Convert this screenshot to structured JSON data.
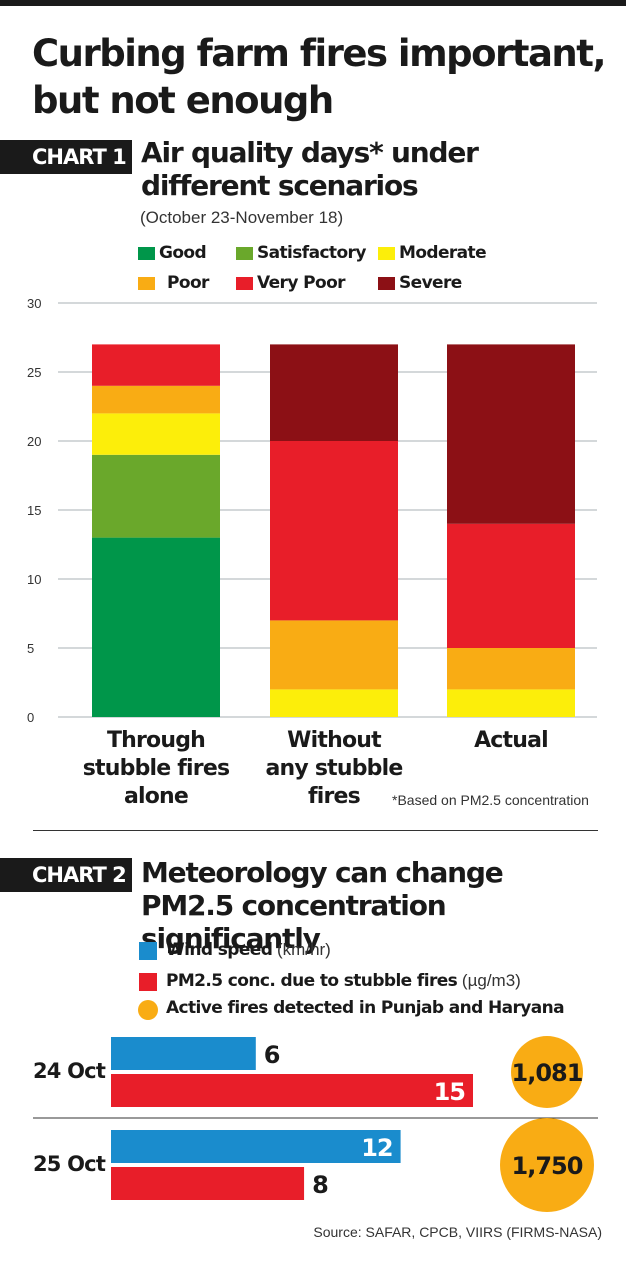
{
  "headline": "Curbing farm fires important, but not enough",
  "chart1": {
    "tag": "CHART 1",
    "title": "Air quality days* under different scenarios",
    "subtitle": "(October 23-November 18)",
    "note": "*Based on PM2.5 concentration"
  },
  "chart2": {
    "tag": "CHART 2",
    "title": "Meteorology can change PM2.5 concentration significantly"
  },
  "source": "Source: SAFAR, CPCB, VIIRS (FIRMS-NASA)",
  "colors": {
    "good": "#00964a",
    "satisfactory": "#6aa82b",
    "moderate": "#fcee0a",
    "poor": "#f9ac14",
    "very_poor": "#e81e29",
    "severe": "#8c1015",
    "wind": "#1a8ccd",
    "pm25": "#e81e29",
    "fires": "#f9ac14"
  },
  "chart_data": [
    {
      "type": "bar",
      "stacked": true,
      "categories": [
        "Through stubble fires alone",
        "Without any stubble fires",
        "Actual"
      ],
      "category_lines": [
        [
          "Through",
          "stubble fires",
          "alone"
        ],
        [
          "Without",
          "any stubble",
          "fires"
        ],
        [
          "Actual"
        ]
      ],
      "series": [
        {
          "name": "Good",
          "key": "good",
          "values": [
            13,
            0,
            0
          ]
        },
        {
          "name": "Satisfactory",
          "key": "satisfactory",
          "values": [
            6,
            0,
            0
          ]
        },
        {
          "name": "Moderate",
          "key": "moderate",
          "values": [
            3,
            2,
            2
          ]
        },
        {
          "name": "Poor",
          "key": "poor",
          "values": [
            2,
            5,
            3
          ]
        },
        {
          "name": "Very Poor",
          "key": "very_poor",
          "values": [
            3,
            13,
            9
          ]
        },
        {
          "name": "Severe",
          "key": "severe",
          "values": [
            0,
            7,
            13
          ]
        }
      ],
      "ylim": [
        0,
        30
      ],
      "yticks": [
        0,
        5,
        10,
        15,
        20,
        25,
        30
      ],
      "grid": true,
      "legend": "top"
    },
    {
      "type": "bar",
      "orientation": "horizontal",
      "categories": [
        "24 Oct",
        "25 Oct"
      ],
      "series": [
        {
          "name": "Wind speed",
          "unit": "(km/hr)",
          "key": "wind",
          "values": [
            6,
            12
          ]
        },
        {
          "name": "PM2.5 conc. due to stubble fires",
          "unit": "(µg/m3)",
          "key": "pm25",
          "values": [
            15,
            8
          ]
        }
      ],
      "fires": {
        "name": "Active fires detected in Punjab and Haryana",
        "key": "fires",
        "values": [
          1081,
          1750
        ],
        "labels": [
          "1,081",
          "1,750"
        ]
      },
      "xlim": [
        0,
        15
      ],
      "legend": "top"
    }
  ]
}
